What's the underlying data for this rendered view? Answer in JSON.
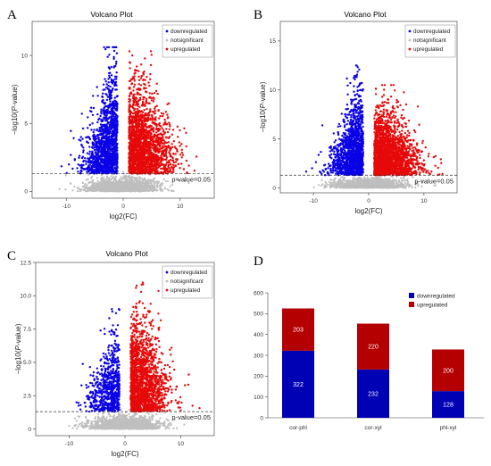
{
  "chart_data": [
    {
      "panel_label": "A",
      "type": "scatter",
      "title": "Volcano Plot",
      "xlabel": "log2(FC)",
      "ylabel_prefix": "−log10(",
      "ylabel_italic": "P",
      "ylabel_suffix": "-value)",
      "xlim": [
        -16,
        16
      ],
      "ylim": [
        -0.5,
        12.5
      ],
      "x_ticks": [
        -10,
        0,
        10
      ],
      "y_ticks": [
        0,
        5,
        10
      ],
      "threshold_y": 1.3,
      "threshold_label": "p-value=0.05",
      "legend": [
        "downregulated",
        "notsignificant",
        "upregulated"
      ],
      "legend_position": "top-right",
      "sample_counts": {
        "downregulated": 1400,
        "upregulated": 2000,
        "notsignificant": 1500
      },
      "peak": {
        "down": 10.6,
        "up": 10.3
      },
      "up_spread": 3.5
    },
    {
      "panel_label": "B",
      "type": "scatter",
      "title": "Volcano Plot",
      "xlabel": "log2(FC)",
      "ylabel_prefix": "−log10(",
      "ylabel_italic": "P",
      "ylabel_suffix": "-value)",
      "xlim": [
        -16,
        16
      ],
      "ylim": [
        -0.5,
        17
      ],
      "x_ticks": [
        -10,
        0,
        10
      ],
      "y_ticks": [
        0,
        5,
        10,
        15
      ],
      "threshold_y": 1.3,
      "threshold_label": "p-value=0.05",
      "legend": [
        "downregulated",
        "notsignificant",
        "upregulated"
      ],
      "legend_position": "top-right",
      "sample_counts": {
        "downregulated": 1400,
        "upregulated": 2200,
        "notsignificant": 1500
      },
      "peak": {
        "down": 12.5,
        "up": 10.5
      },
      "up_spread": 3.5
    },
    {
      "panel_label": "C",
      "type": "scatter",
      "title": "Volcano Plot",
      "xlabel": "log2(FC)",
      "ylabel_prefix": "−log10(",
      "ylabel_italic": "P",
      "ylabel_suffix": "-value)",
      "xlim": [
        -16,
        16
      ],
      "ylim": [
        -0.5,
        12.5
      ],
      "x_ticks": [
        -10,
        0,
        10
      ],
      "y_ticks": [
        0,
        2.5,
        5,
        7.5,
        10,
        12.5
      ],
      "y_tick_labels": [
        "0",
        "2.5",
        "5.0",
        "7.5",
        "10.0",
        "12.5"
      ],
      "threshold_y": 1.3,
      "threshold_label": "p-value=0.05",
      "legend": [
        "downregulated",
        "notsignificant",
        "upregulated"
      ],
      "legend_position": "top-right",
      "sample_counts": {
        "downregulated": 700,
        "upregulated": 1800,
        "notsignificant": 1500
      },
      "peak": {
        "down": 9.0,
        "up": 11.0
      },
      "up_spread": 3.0
    },
    {
      "panel_label": "D",
      "type": "bar",
      "stacked": true,
      "categories": [
        "cor-phl",
        "cor-xyl",
        "phl-xyl"
      ],
      "series": [
        {
          "name": "downregulated",
          "values": [
            322,
            232,
            128
          ]
        },
        {
          "name": "upregulated",
          "values": [
            203,
            220,
            200
          ]
        }
      ],
      "ylim": [
        0,
        600
      ],
      "y_ticks": [
        0,
        100,
        200,
        300,
        400,
        500,
        600
      ],
      "legend_position": "top-right"
    }
  ],
  "colors": {
    "down": "#0a00e6",
    "up": "#e60a0a",
    "ns": "#bebebe",
    "bar_down": "#0000b4",
    "bar_up": "#b40000"
  }
}
